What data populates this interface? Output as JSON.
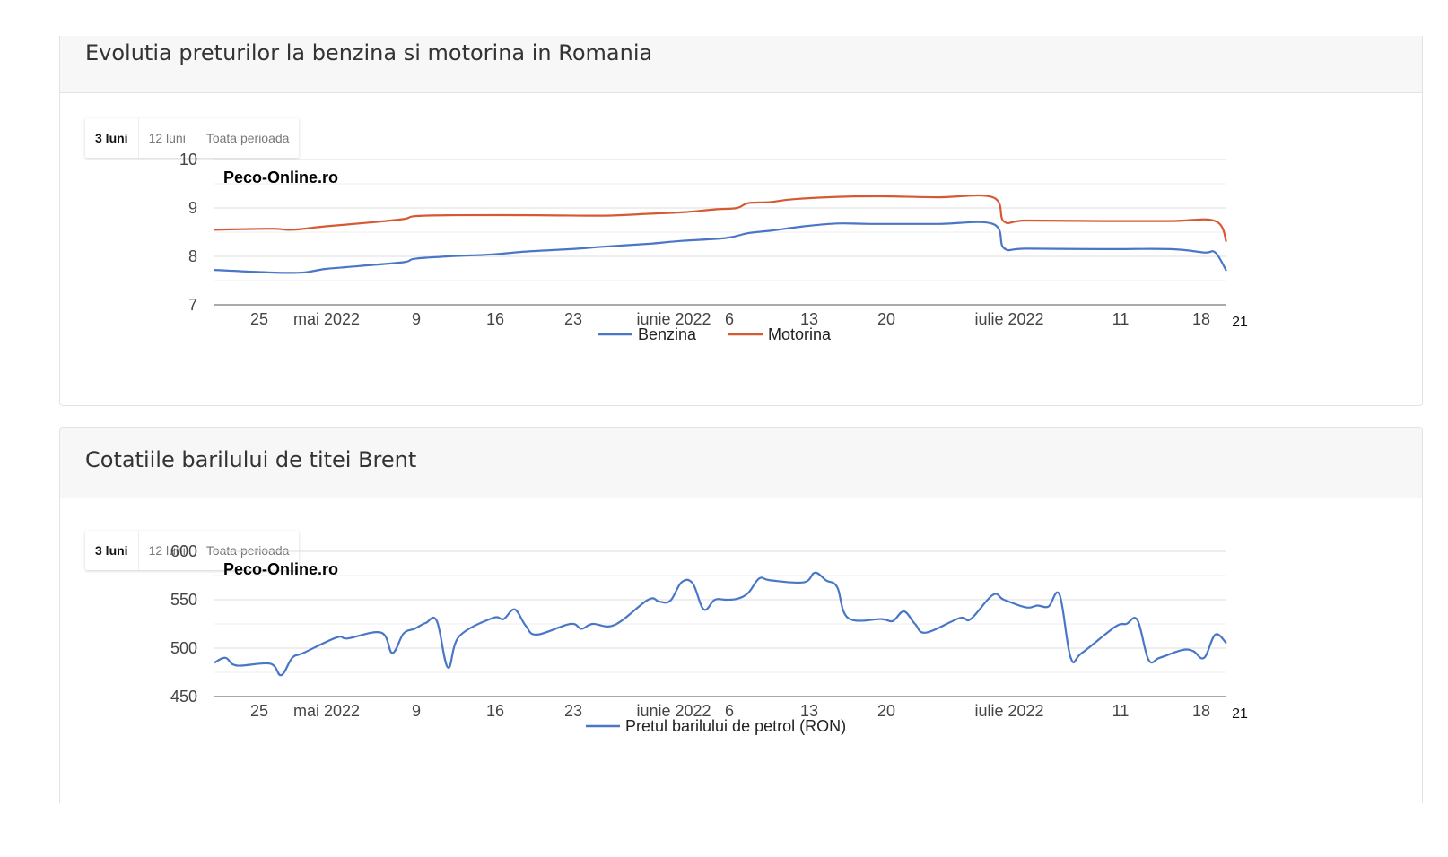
{
  "panels": [
    {
      "title": "Evolutia preturilor la benzina si motorina in Romania",
      "tabs": [
        "3 luni",
        "12 luni",
        "Toata perioada"
      ],
      "active_tab": "3 luni"
    },
    {
      "title": "Cotatiile barilului de titei Brent",
      "tabs": [
        "3 luni",
        "12 luni",
        "Toata perioada"
      ],
      "active_tab": "3 luni"
    }
  ],
  "chart_data": [
    {
      "type": "line",
      "watermark": "Peco-Online.ro",
      "x_start": "2022-04-21",
      "x_end": "2022-07-21",
      "x_ticks": [
        "25",
        "mai 2022",
        "9",
        "16",
        "23",
        "iunie 2022",
        "6",
        "13",
        "20",
        "iulie 2022",
        "11",
        "18",
        "21"
      ],
      "y_ticks": [
        "10",
        "9",
        "8",
        "7"
      ],
      "ylim": [
        7,
        10
      ],
      "grid": true,
      "legend_position": "bottom",
      "colors": {
        "Benzina": "#4a76c7",
        "Motorina": "#d55a33"
      },
      "series": [
        {
          "name": "Benzina",
          "x": [
            "2022-04-21",
            "2022-04-28",
            "2022-05-01",
            "2022-05-04",
            "2022-05-08",
            "2022-05-09",
            "2022-05-12",
            "2022-05-16",
            "2022-05-19",
            "2022-05-23",
            "2022-05-26",
            "2022-05-30",
            "2022-06-02",
            "2022-06-06",
            "2022-06-08",
            "2022-06-10",
            "2022-06-13",
            "2022-06-16",
            "2022-06-19",
            "2022-06-25",
            "2022-06-30",
            "2022-07-01",
            "2022-07-03",
            "2022-07-10",
            "2022-07-16",
            "2022-07-19",
            "2022-07-20",
            "2022-07-21"
          ],
          "values": [
            7.72,
            7.66,
            7.74,
            7.8,
            7.88,
            7.95,
            8.0,
            8.04,
            8.1,
            8.15,
            8.2,
            8.26,
            8.32,
            8.38,
            8.48,
            8.53,
            8.62,
            8.68,
            8.67,
            8.67,
            8.67,
            8.17,
            8.16,
            8.15,
            8.15,
            8.08,
            8.08,
            7.7
          ]
        },
        {
          "name": "Motorina",
          "x": [
            "2022-04-21",
            "2022-04-26",
            "2022-04-28",
            "2022-05-01",
            "2022-05-05",
            "2022-05-08",
            "2022-05-09",
            "2022-05-12",
            "2022-05-20",
            "2022-05-26",
            "2022-05-30",
            "2022-06-02",
            "2022-06-05",
            "2022-06-07",
            "2022-06-08",
            "2022-06-10",
            "2022-06-12",
            "2022-06-16",
            "2022-06-20",
            "2022-06-25",
            "2022-06-30",
            "2022-07-01",
            "2022-07-03",
            "2022-07-10",
            "2022-07-16",
            "2022-07-20",
            "2022-07-21"
          ],
          "values": [
            8.55,
            8.57,
            8.55,
            8.62,
            8.7,
            8.77,
            8.83,
            8.85,
            8.85,
            8.84,
            8.88,
            8.91,
            8.97,
            9.0,
            9.1,
            9.12,
            9.18,
            9.23,
            9.24,
            9.22,
            9.22,
            8.72,
            8.74,
            8.73,
            8.73,
            8.73,
            8.3
          ]
        }
      ]
    },
    {
      "type": "line",
      "watermark": "Peco-Online.ro",
      "x_start": "2022-04-21",
      "x_end": "2022-07-21",
      "x_ticks": [
        "25",
        "mai 2022",
        "9",
        "16",
        "23",
        "iunie 2022",
        "6",
        "13",
        "20",
        "iulie 2022",
        "11",
        "18",
        "21"
      ],
      "y_ticks": [
        "600",
        "550",
        "500",
        "450"
      ],
      "ylim": [
        450,
        600
      ],
      "grid": true,
      "legend_position": "bottom",
      "colors": {
        "Pretul barilului de petrol (RON)": "#4a76c7"
      },
      "series": [
        {
          "name": "Pretul barilului de petrol (RON)",
          "x": [
            "2022-04-21",
            "2022-04-22",
            "2022-04-23",
            "2022-04-26",
            "2022-04-27",
            "2022-04-28",
            "2022-04-29",
            "2022-05-02",
            "2022-05-03",
            "2022-05-06",
            "2022-05-07",
            "2022-05-08",
            "2022-05-09",
            "2022-05-10",
            "2022-05-11",
            "2022-05-12",
            "2022-05-13",
            "2022-05-16",
            "2022-05-17",
            "2022-05-18",
            "2022-05-19",
            "2022-05-20",
            "2022-05-23",
            "2022-05-24",
            "2022-05-25",
            "2022-05-27",
            "2022-05-30",
            "2022-05-31",
            "2022-06-01",
            "2022-06-02",
            "2022-06-03",
            "2022-06-04",
            "2022-06-05",
            "2022-06-06",
            "2022-06-07",
            "2022-06-08",
            "2022-06-09",
            "2022-06-10",
            "2022-06-13",
            "2022-06-14",
            "2022-06-15",
            "2022-06-16",
            "2022-06-17",
            "2022-06-20",
            "2022-06-21",
            "2022-06-22",
            "2022-06-23",
            "2022-06-24",
            "2022-06-27",
            "2022-06-28",
            "2022-06-30",
            "2022-07-01",
            "2022-07-03",
            "2022-07-04",
            "2022-07-05",
            "2022-07-06",
            "2022-07-07",
            "2022-07-08",
            "2022-07-11",
            "2022-07-12",
            "2022-07-13",
            "2022-07-14",
            "2022-07-15",
            "2022-07-17",
            "2022-07-18",
            "2022-07-19",
            "2022-07-20",
            "2022-07-21"
          ],
          "values": [
            485,
            490,
            482,
            484,
            472,
            490,
            495,
            511,
            510,
            516,
            495,
            515,
            520,
            526,
            528,
            480,
            512,
            531,
            530,
            540,
            523,
            514,
            525,
            520,
            525,
            524,
            550,
            548,
            549,
            568,
            567,
            540,
            550,
            550,
            551,
            557,
            572,
            570,
            568,
            578,
            570,
            563,
            531,
            530,
            528,
            538,
            525,
            516,
            531,
            530,
            555,
            550,
            542,
            544,
            543,
            555,
            490,
            495,
            522,
            525,
            529,
            488,
            490,
            498,
            497,
            490,
            514,
            505
          ]
        }
      ]
    }
  ]
}
